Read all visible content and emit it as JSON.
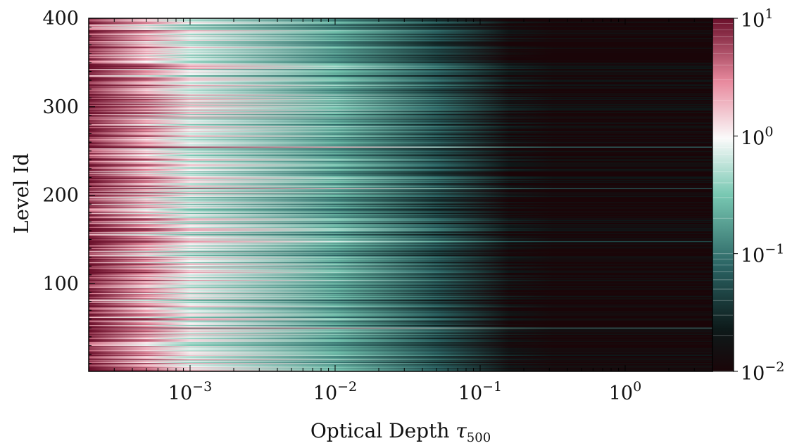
{
  "chart_data": {
    "type": "heatmap",
    "title": "",
    "xlabel": "Optical Depth",
    "xlabel_symbol": "τ",
    "xlabel_subscript": "500",
    "ylabel": "Level Id",
    "xscale": "log",
    "xlim": [
      0.0002,
      4.0
    ],
    "ylim": [
      1,
      400
    ],
    "x_ticks": [
      0.001,
      0.01,
      0.1,
      1
    ],
    "x_tick_labels": [
      {
        "base": "10",
        "exp": "−3"
      },
      {
        "base": "10",
        "exp": "−2"
      },
      {
        "base": "10",
        "exp": "−1"
      },
      {
        "base": "10",
        "exp": "0"
      }
    ],
    "y_ticks": [
      100,
      200,
      300,
      400
    ],
    "y_tick_labels": [
      "100",
      "200",
      "300",
      "400"
    ],
    "colorbar": {
      "scale": "log",
      "range": [
        0.01,
        10
      ],
      "ticks": [
        0.01,
        0.1,
        1,
        10
      ],
      "tick_labels": [
        {
          "base": "10",
          "exp": "−2"
        },
        {
          "base": "10",
          "exp": "−1"
        },
        {
          "base": "10",
          "exp": "0"
        },
        {
          "base": "10",
          "exp": "1"
        }
      ],
      "colormap": [
        {
          "stop": 0.0,
          "color": "#1a0508"
        },
        {
          "stop": 0.12,
          "color": "#0d1a1a"
        },
        {
          "stop": 0.3,
          "color": "#2b6464"
        },
        {
          "stop": 0.5,
          "color": "#78c8b2"
        },
        {
          "stop": 0.66,
          "color": "#fafafa"
        },
        {
          "stop": 0.82,
          "color": "#e88a9e"
        },
        {
          "stop": 1.0,
          "color": "#6a0f2a"
        }
      ]
    },
    "profile": {
      "description_values_log10": [
        {
          "log_tau": -3.7,
          "value_log10": 0.85
        },
        {
          "log_tau": -3.3,
          "value_log10": 0.3
        },
        {
          "log_tau": -3.0,
          "value_log10": -0.15
        },
        {
          "log_tau": -2.0,
          "value_log10": -0.75
        },
        {
          "log_tau": -1.3,
          "value_log10": -1.3
        },
        {
          "log_tau": -0.8,
          "value_log10": -1.85
        },
        {
          "log_tau": -0.5,
          "value_log10": -2.0
        }
      ],
      "bright_levels": [
        50,
        148,
        208,
        255
      ]
    }
  }
}
